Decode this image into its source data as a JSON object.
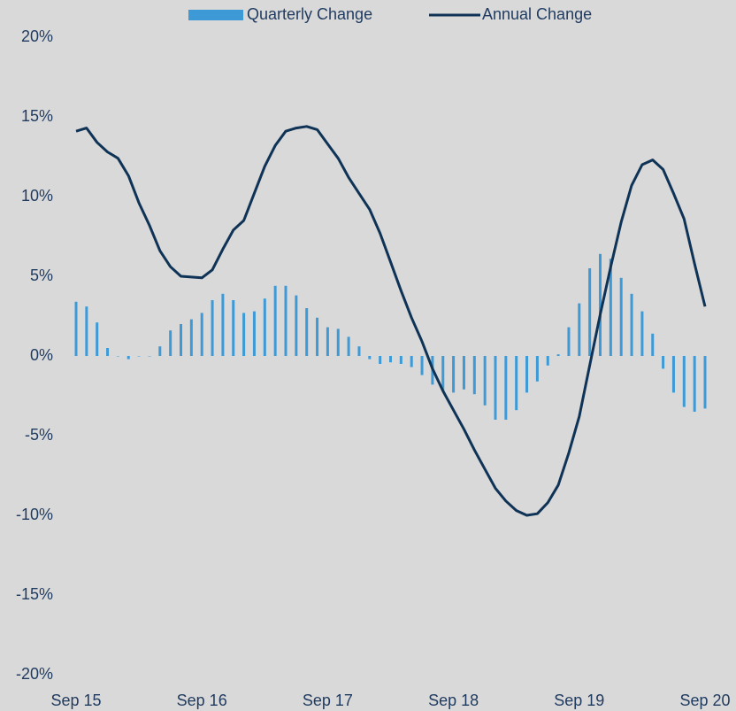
{
  "chart_data": {
    "type": "bar_line",
    "categories": [
      "Sep 15",
      null,
      null,
      null,
      null,
      null,
      null,
      null,
      null,
      null,
      null,
      null,
      "Sep 16",
      null,
      null,
      null,
      null,
      null,
      null,
      null,
      null,
      null,
      null,
      null,
      "Sep 17",
      null,
      null,
      null,
      null,
      null,
      null,
      null,
      null,
      null,
      null,
      null,
      "Sep 18",
      null,
      null,
      null,
      null,
      null,
      null,
      null,
      null,
      null,
      null,
      null,
      "Sep 19",
      null,
      null,
      null,
      null,
      null,
      null,
      null,
      null,
      null,
      null,
      null,
      "Sep 20"
    ],
    "series": [
      {
        "name": "Quarterly Change",
        "type": "bar",
        "color": "#3e9ad6",
        "values": [
          3.4,
          3.1,
          2.1,
          0.5,
          0,
          -0.2,
          0,
          0,
          0.6,
          1.6,
          2.0,
          2.3,
          2.7,
          3.5,
          3.9,
          3.5,
          2.7,
          2.8,
          3.6,
          4.4,
          4.4,
          3.8,
          3.0,
          2.4,
          1.8,
          1.7,
          1.2,
          0.6,
          -0.2,
          -0.5,
          -0.4,
          -0.5,
          -0.7,
          -1.2,
          -1.8,
          -2.2,
          -2.3,
          -2.1,
          -2.4,
          -3.1,
          -4.0,
          -4.0,
          -3.4,
          -2.3,
          -1.6,
          -0.6,
          0.1,
          1.8,
          3.3,
          5.5,
          6.4,
          6.1,
          4.9,
          3.9,
          2.8,
          1.4,
          -0.8,
          -2.3,
          -3.2,
          -3.5,
          -3.3
        ]
      },
      {
        "name": "Annual Change",
        "type": "line",
        "color": "#0f3356",
        "values": [
          14.1,
          14.3,
          13.4,
          12.8,
          12.4,
          11.3,
          9.6,
          8.2,
          6.6,
          5.6,
          5.0,
          4.95,
          4.9,
          5.4,
          6.7,
          7.9,
          8.5,
          10.2,
          11.9,
          13.2,
          14.1,
          14.3,
          14.4,
          14.2,
          13.3,
          12.4,
          11.2,
          10.2,
          9.2,
          7.7,
          5.9,
          4.1,
          2.4,
          0.9,
          -0.8,
          -2.2,
          -3.4,
          -4.6,
          -5.9,
          -7.1,
          -8.3,
          -9.1,
          -9.7,
          -10.0,
          -9.9,
          -9.2,
          -8.1,
          -6.1,
          -3.8,
          -0.6,
          2.6,
          5.6,
          8.4,
          10.7,
          12.0,
          12.3,
          11.7,
          10.2,
          8.6,
          5.8,
          3.1
        ]
      }
    ],
    "ylim": [
      -20,
      20
    ],
    "yticks": [
      {
        "value": -20,
        "label": "-20%"
      },
      {
        "value": -15,
        "label": "-15%"
      },
      {
        "value": -10,
        "label": "-10%"
      },
      {
        "value": -5,
        "label": "-5%"
      },
      {
        "value": 0,
        "label": "0%"
      },
      {
        "value": 5,
        "label": "5%"
      },
      {
        "value": 10,
        "label": "10%"
      },
      {
        "value": 15,
        "label": "15%"
      },
      {
        "value": 20,
        "label": "20%"
      }
    ],
    "grid": false,
    "legend": "top"
  }
}
